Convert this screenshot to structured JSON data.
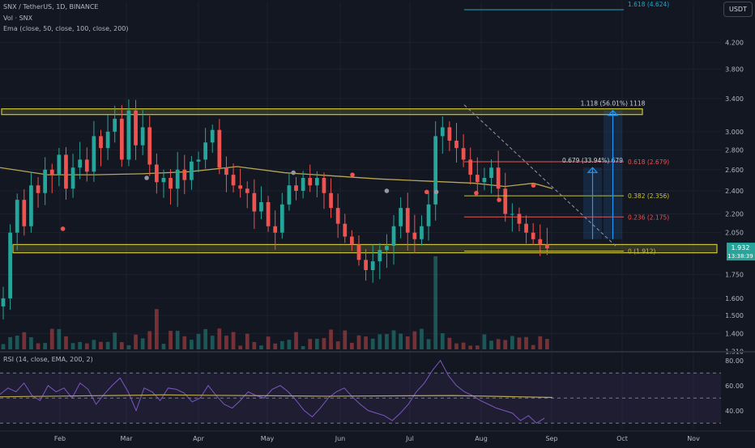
{
  "header": {
    "symbol_line": "SNX / TetherUS, 1D, BINANCE",
    "vol_line": "Vol · SNX",
    "ema_line": "Ema (close, 50, close, 100, close, 200)",
    "currency_button": "USDT"
  },
  "rsi_header": "RSI (14, close, EMA, 200, 2)",
  "colors": {
    "background": "#131722",
    "up": "#26a69a",
    "down": "#ef5350",
    "zone": "#c9c23a",
    "ema": "#b9a652",
    "rsi": "#7e57c2",
    "fib_blue": "#2196f3"
  },
  "chart_data": [
    {
      "type": "candlestick",
      "scale": "log",
      "ylim": [
        1.32,
        4.9
      ],
      "y_ticks": [
        "4.200",
        "3.800",
        "3.400",
        "3.000",
        "2.800",
        "2.600",
        "2.400",
        "2.200",
        "2.050",
        "1.750",
        "1.600",
        "1.500",
        "1.400",
        "1.310"
      ],
      "x_ticks": [
        "Feb",
        "Mar",
        "Apr",
        "May",
        "Jun",
        "Jul",
        "Aug",
        "Sep",
        "Oct",
        "Nov"
      ],
      "last_price": "1.932",
      "countdown": "13:38:39",
      "zones": [
        {
          "name": "resistance",
          "from": 3.2,
          "to": 3.27
        },
        {
          "name": "support",
          "from": 1.9,
          "to": 1.96
        }
      ],
      "fib_levels": [
        {
          "label": "1.618 (4.624)",
          "value": 4.624
        },
        {
          "label": "0.618 (2.679)",
          "value": 2.679
        },
        {
          "label": "0.382 (2.356)",
          "value": 2.356
        },
        {
          "label": "0.236 (2.175)",
          "value": 2.175
        },
        {
          "label": "0 (1.912)",
          "value": 1.912
        }
      ],
      "measure_labels": [
        "1.118 (56.01%) 1118",
        "0.679 (33.94%) 679"
      ],
      "ema200": [
        [
          0,
          2.62
        ],
        [
          20,
          2.55
        ],
        [
          40,
          2.55
        ],
        [
          60,
          2.56
        ],
        [
          80,
          2.58
        ],
        [
          100,
          2.63
        ],
        [
          120,
          2.57
        ],
        [
          140,
          2.54
        ],
        [
          160,
          2.51
        ],
        [
          180,
          2.49
        ],
        [
          200,
          2.47
        ],
        [
          213,
          2.44
        ],
        [
          225,
          2.47
        ],
        [
          233,
          2.42
        ]
      ],
      "closes": [
        1.6,
        2.05,
        2.32,
        2.1,
        2.45,
        2.38,
        2.6,
        2.55,
        2.75,
        2.42,
        2.62,
        2.7,
        2.58,
        2.95,
        2.82,
        3.0,
        3.15,
        2.7,
        3.25,
        2.85,
        3.05,
        2.65,
        2.48,
        2.52,
        2.42,
        2.6,
        2.5,
        2.68,
        2.7,
        2.88,
        3.02,
        2.62,
        2.55,
        2.45,
        2.42,
        2.38,
        2.22,
        2.3,
        2.1,
        2.05,
        2.28,
        2.45,
        2.4,
        2.52,
        2.45,
        2.52,
        2.38,
        2.25,
        2.12,
        2.02,
        1.96,
        1.85,
        1.78,
        1.84,
        1.92,
        1.95,
        2.1,
        2.25,
        2.05,
        2.0,
        2.1,
        2.28,
        2.95,
        3.05,
        2.9,
        2.82,
        2.7,
        2.55,
        2.48,
        2.52,
        2.62,
        2.42,
        2.2,
        2.2,
        2.12,
        2.05,
        2.0,
        1.96,
        1.932
      ],
      "ema_markers": [
        [
          77,
          2.52,
          "gray"
        ],
        [
          154,
          2.57,
          "gray"
        ],
        [
          185,
          2.55,
          "down"
        ],
        [
          224,
          2.39,
          "down"
        ],
        [
          250,
          2.38,
          "down"
        ],
        [
          280,
          2.45,
          "down"
        ],
        [
          262,
          2.32,
          "down"
        ],
        [
          203,
          2.4,
          "gray"
        ],
        [
          229,
          2.39,
          "gray"
        ],
        [
          33,
          2.08,
          "down"
        ]
      ]
    },
    {
      "type": "line",
      "name": "RSI",
      "ylim": [
        25,
        85
      ],
      "y_ticks": [
        "80.00",
        "60.00",
        "40.00"
      ],
      "bands": [
        70,
        50,
        30
      ],
      "values": [
        53,
        58,
        55,
        62,
        52,
        48,
        60,
        55,
        58,
        50,
        62,
        57,
        45,
        53,
        60,
        66,
        55,
        40,
        58,
        55,
        48,
        58,
        57,
        54,
        47,
        50,
        60,
        52,
        45,
        42,
        48,
        55,
        52,
        50,
        57,
        60,
        55,
        48,
        40,
        35,
        42,
        50,
        55,
        58,
        51,
        45,
        40,
        38,
        36,
        32,
        38,
        45,
        55,
        62,
        72,
        80,
        68,
        60,
        55,
        52,
        48,
        45,
        42,
        40,
        38,
        32,
        36,
        30,
        34
      ]
    }
  ]
}
